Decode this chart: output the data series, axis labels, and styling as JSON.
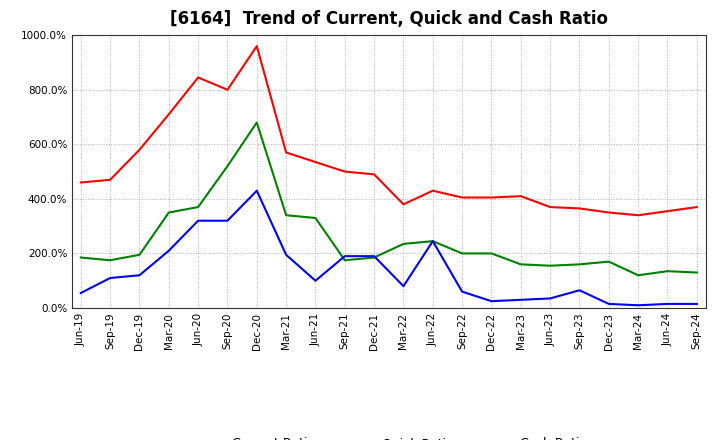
{
  "title": "[6164]  Trend of Current, Quick and Cash Ratio",
  "x_labels": [
    "Jun-19",
    "Sep-19",
    "Dec-19",
    "Mar-20",
    "Jun-20",
    "Sep-20",
    "Dec-20",
    "Mar-21",
    "Jun-21",
    "Sep-21",
    "Dec-21",
    "Mar-22",
    "Jun-22",
    "Sep-22",
    "Dec-22",
    "Mar-23",
    "Jun-23",
    "Sep-23",
    "Dec-23",
    "Mar-24",
    "Jun-24",
    "Sep-24"
  ],
  "current_ratio": [
    460,
    470,
    580,
    710,
    845,
    800,
    960,
    570,
    535,
    500,
    490,
    380,
    430,
    405,
    405,
    410,
    370,
    365,
    350,
    340,
    355,
    370
  ],
  "quick_ratio": [
    185,
    175,
    195,
    350,
    370,
    520,
    680,
    340,
    330,
    175,
    185,
    235,
    245,
    200,
    200,
    160,
    155,
    160,
    170,
    120,
    135,
    130
  ],
  "cash_ratio": [
    55,
    110,
    120,
    210,
    320,
    320,
    430,
    195,
    100,
    190,
    190,
    80,
    245,
    60,
    25,
    30,
    35,
    65,
    15,
    10,
    15,
    15
  ],
  "ylim": [
    0,
    1000
  ],
  "yticks": [
    0,
    200,
    400,
    600,
    800,
    1000
  ],
  "ytick_labels": [
    "0.0%",
    "200.0%",
    "400.0%",
    "600.0%",
    "800.0%",
    "1000.0%"
  ],
  "current_color": "#ff0000",
  "quick_color": "#008000",
  "cash_color": "#0000ff",
  "line_width": 1.5,
  "background_color": "#ffffff",
  "plot_bg_color": "#ffffff",
  "grid_color": "#b0b0b0",
  "legend_labels": [
    "Current Ratio",
    "Quick Ratio",
    "Cash Ratio"
  ],
  "title_fontsize": 12,
  "tick_fontsize": 7.5,
  "legend_fontsize": 9
}
